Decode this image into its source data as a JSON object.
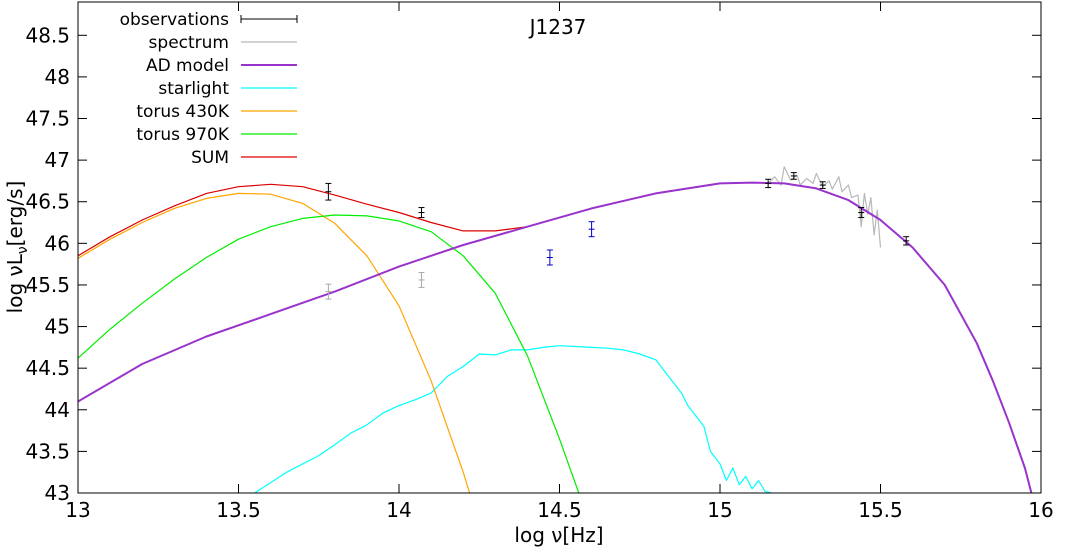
{
  "chart_data": {
    "type": "line",
    "title": "J1237",
    "xlabel": "log ν[Hz]",
    "ylabel_main": "log νL",
    "ylabel_sub": "ν",
    "ylabel_tail": "[erg/s]",
    "xlim": [
      13,
      16
    ],
    "ylim": [
      43,
      48.9
    ],
    "x_ticks": [
      "13",
      "13.5",
      "14",
      "14.5",
      "15",
      "15.5",
      "16"
    ],
    "y_ticks": [
      "43",
      "43.5",
      "44",
      "44.5",
      "45",
      "45.5",
      "46",
      "46.5",
      "47",
      "47.5",
      "48",
      "48.5"
    ],
    "legend_position": "top-left",
    "grid": false,
    "series": [
      {
        "name": "observations",
        "kind": "errorbars",
        "color": "#000000",
        "points": [
          {
            "x": 13.78,
            "y": 46.62,
            "err": 0.1
          },
          {
            "x": 14.07,
            "y": 46.37,
            "err": 0.06
          },
          {
            "x": 15.15,
            "y": 46.72,
            "err": 0.05
          },
          {
            "x": 15.23,
            "y": 46.81,
            "err": 0.04
          },
          {
            "x": 15.32,
            "y": 46.7,
            "err": 0.04
          },
          {
            "x": 15.44,
            "y": 46.37,
            "err": 0.06
          },
          {
            "x": 15.58,
            "y": 46.03,
            "err": 0.05
          }
        ],
        "extra_gray_points": [
          {
            "x": 13.78,
            "y": 45.42,
            "err": 0.09
          },
          {
            "x": 14.07,
            "y": 45.56,
            "err": 0.09
          }
        ],
        "extra_blue_points": [
          {
            "x": 14.47,
            "y": 45.83,
            "err": 0.09
          },
          {
            "x": 14.6,
            "y": 46.17,
            "err": 0.09
          }
        ]
      },
      {
        "name": "spectrum",
        "kind": "line",
        "color": "#b8b8b8",
        "x": [
          15.15,
          15.17,
          15.19,
          15.2,
          15.22,
          15.24,
          15.25,
          15.27,
          15.29,
          15.3,
          15.32,
          15.34,
          15.35,
          15.37,
          15.38,
          15.4,
          15.41,
          15.43,
          15.44,
          15.45,
          15.46,
          15.47,
          15.48,
          15.49,
          15.5
        ],
        "y": [
          46.72,
          46.8,
          46.7,
          46.92,
          46.76,
          46.82,
          46.7,
          46.78,
          46.72,
          46.84,
          46.68,
          46.75,
          46.65,
          46.8,
          46.62,
          46.7,
          46.55,
          46.58,
          46.2,
          46.6,
          46.35,
          46.55,
          46.1,
          46.4,
          45.95
        ]
      },
      {
        "name": "AD model",
        "kind": "line",
        "color": "#9933cc",
        "x": [
          13.0,
          13.2,
          13.4,
          13.6,
          13.8,
          14.0,
          14.2,
          14.4,
          14.6,
          14.8,
          15.0,
          15.1,
          15.2,
          15.3,
          15.4,
          15.5,
          15.6,
          15.7,
          15.8,
          15.85,
          15.9,
          15.95,
          15.97
        ],
        "y": [
          44.1,
          44.55,
          44.88,
          45.15,
          45.42,
          45.72,
          45.98,
          46.2,
          46.42,
          46.6,
          46.72,
          46.73,
          46.72,
          46.66,
          46.52,
          46.28,
          45.95,
          45.5,
          44.8,
          44.35,
          43.85,
          43.3,
          43.0
        ]
      },
      {
        "name": "starlight",
        "kind": "line",
        "color": "#00ffff",
        "x": [
          13.55,
          13.65,
          13.75,
          13.8,
          13.85,
          13.9,
          13.95,
          14.0,
          14.05,
          14.1,
          14.15,
          14.2,
          14.25,
          14.3,
          14.35,
          14.4,
          14.45,
          14.5,
          14.55,
          14.6,
          14.65,
          14.7,
          14.75,
          14.8,
          14.83,
          14.86,
          14.88,
          14.9,
          14.92,
          14.95,
          14.97,
          15.0,
          15.02,
          15.04,
          15.06,
          15.08,
          15.1,
          15.12,
          15.14,
          15.16
        ],
        "y": [
          43.0,
          43.25,
          43.45,
          43.58,
          43.72,
          43.82,
          43.96,
          44.05,
          44.12,
          44.2,
          44.4,
          44.52,
          44.67,
          44.66,
          44.72,
          44.72,
          44.75,
          44.77,
          44.76,
          44.75,
          44.74,
          44.72,
          44.67,
          44.6,
          44.45,
          44.3,
          44.2,
          44.05,
          43.95,
          43.8,
          43.5,
          43.35,
          43.15,
          43.3,
          43.1,
          43.2,
          43.05,
          43.15,
          43.02,
          43.0
        ]
      },
      {
        "name": "torus 430K",
        "kind": "line",
        "color": "#ffa500",
        "x": [
          13.0,
          13.1,
          13.2,
          13.3,
          13.4,
          13.5,
          13.6,
          13.7,
          13.8,
          13.9,
          14.0,
          14.1,
          14.2,
          14.22
        ],
        "y": [
          45.82,
          46.05,
          46.25,
          46.42,
          46.54,
          46.6,
          46.59,
          46.48,
          46.24,
          45.85,
          45.25,
          44.35,
          43.25,
          43.0
        ]
      },
      {
        "name": "torus 970K",
        "kind": "line",
        "color": "#00ee00",
        "x": [
          13.0,
          13.1,
          13.2,
          13.3,
          13.4,
          13.5,
          13.6,
          13.7,
          13.8,
          13.9,
          14.0,
          14.1,
          14.2,
          14.3,
          14.4,
          14.5,
          14.56
        ],
        "y": [
          44.62,
          44.97,
          45.28,
          45.57,
          45.83,
          46.05,
          46.2,
          46.3,
          46.34,
          46.33,
          46.27,
          46.14,
          45.85,
          45.4,
          44.65,
          43.65,
          43.0
        ]
      },
      {
        "name": "SUM",
        "kind": "line",
        "color": "#dd0000",
        "x": [
          13.0,
          13.1,
          13.2,
          13.3,
          13.4,
          13.5,
          13.6,
          13.7,
          13.8,
          13.9,
          14.0,
          14.1,
          14.2,
          14.3,
          14.4,
          14.6,
          14.8,
          15.0,
          15.1,
          15.2,
          15.3,
          15.4,
          15.5,
          15.6,
          15.7,
          15.8,
          15.85,
          15.9,
          15.95,
          15.97
        ],
        "y": [
          45.85,
          46.08,
          46.28,
          46.45,
          46.6,
          46.68,
          46.71,
          46.68,
          46.58,
          46.47,
          46.37,
          46.25,
          46.15,
          46.15,
          46.2,
          46.42,
          46.6,
          46.72,
          46.73,
          46.72,
          46.66,
          46.52,
          46.28,
          45.95,
          45.5,
          44.8,
          44.35,
          43.85,
          43.3,
          43.0
        ]
      }
    ]
  }
}
